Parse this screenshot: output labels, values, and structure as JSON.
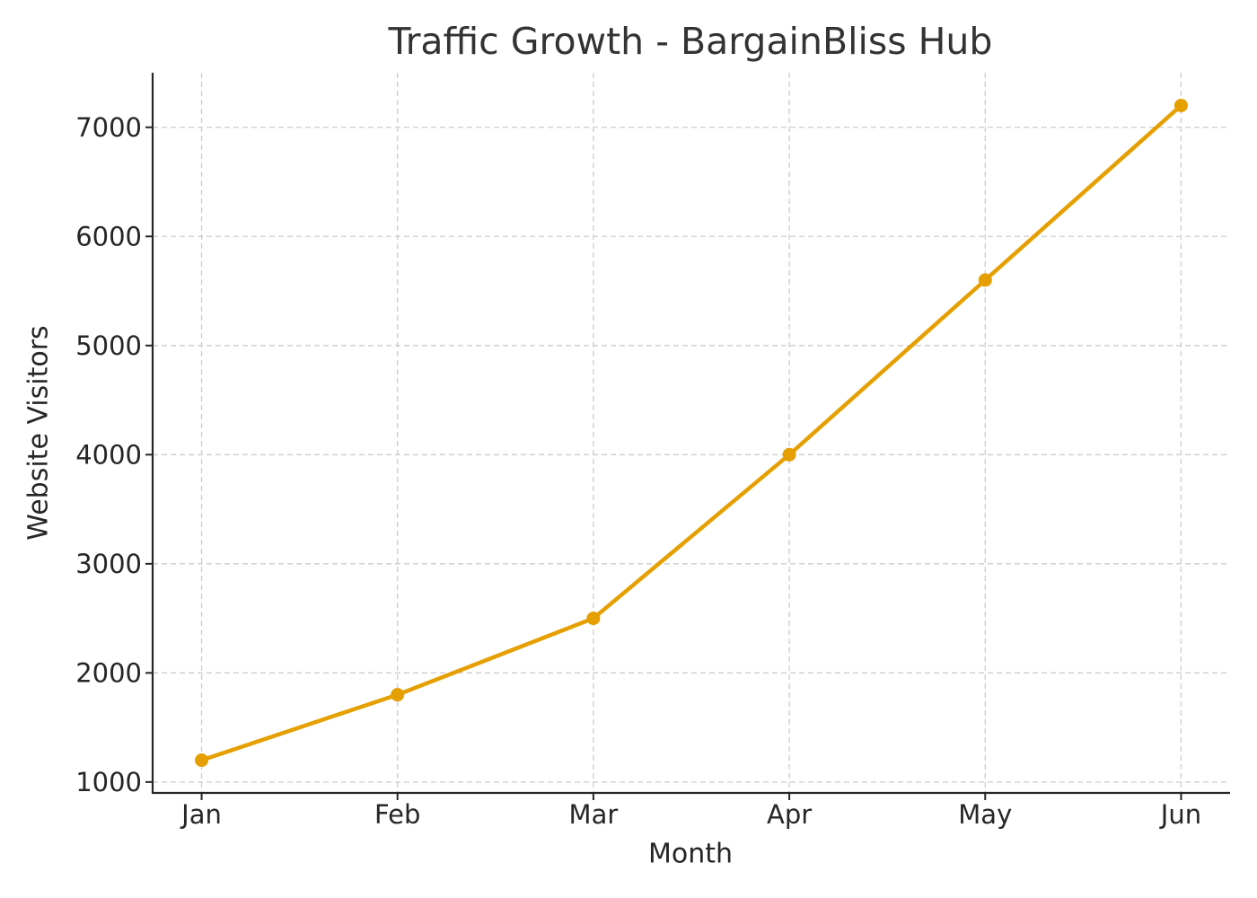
{
  "chart_data": {
    "type": "line",
    "title": "Traffic Growth - BargainBliss Hub",
    "x_label": "Month",
    "y_label": "Website Visitors",
    "categories": [
      "Jan",
      "Feb",
      "Mar",
      "Apr",
      "May",
      "Jun"
    ],
    "values": [
      1200,
      1800,
      2500,
      4000,
      5600,
      7200
    ],
    "color": "#e69f00",
    "ylim": [
      900,
      7500
    ],
    "yticks": [
      1000,
      2000,
      3000,
      4000,
      5000,
      6000,
      7000
    ],
    "grid": true
  }
}
